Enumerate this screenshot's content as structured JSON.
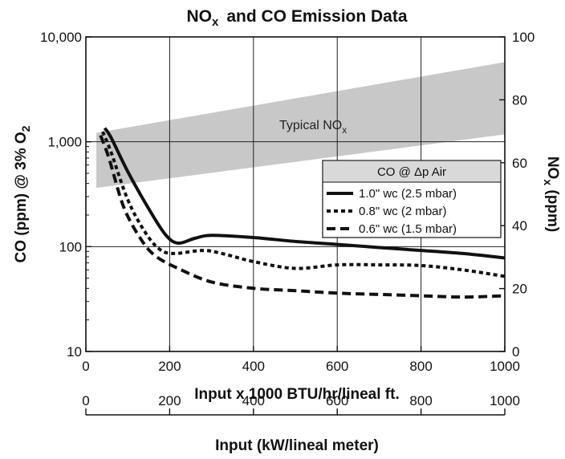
{
  "chart_data": {
    "type": "line",
    "title_main": "NO",
    "title_sub": "x",
    "title_rest": "and CO Emission Data",
    "xlabel": "Input x 1000 BTU/hr/lineal ft.",
    "xlim": [
      0,
      1000
    ],
    "x_ticks": [
      "0",
      "200",
      "400",
      "600",
      "800",
      "1000"
    ],
    "x2label": "Input (kW/lineal meter)",
    "x2lim": [
      0,
      1000
    ],
    "x2_ticks": [
      "0",
      "200",
      "400",
      "600",
      "800",
      "1000"
    ],
    "ylabel_left": {
      "a": "CO (ppm) @ 3% O",
      "b": "2"
    },
    "y_scale_left": "log",
    "ylim_left": [
      10,
      10000
    ],
    "y_ticks_left": [
      "10",
      "100",
      "1,000",
      "10,000"
    ],
    "ylabel_right": {
      "a": "NO",
      "b": "x",
      "c": " (ppm)"
    },
    "ylim_right": [
      0,
      100
    ],
    "y_ticks_right": [
      "0",
      "20",
      "40",
      "60",
      "80",
      "100"
    ],
    "grid": true,
    "band": {
      "label_main": "Typical NO",
      "label_sub": "x",
      "color": "#c8c8c8",
      "x": [
        25,
        1000
      ],
      "upper_right_axis": [
        69.5,
        92
      ],
      "lower_right_axis": [
        52,
        69
      ]
    },
    "legend": {
      "title": "CO @ Δp Air",
      "position": "center-right"
    },
    "series": [
      {
        "name": "1.0\" wc (2.5 mbar)",
        "style": "solid",
        "x": [
          45,
          60,
          100,
          150,
          190,
          220,
          260,
          300,
          400,
          500,
          600,
          700,
          800,
          900,
          1000
        ],
        "y": [
          1350,
          1100,
          520,
          230,
          130,
          108,
          120,
          128,
          122,
          112,
          105,
          98,
          92,
          86,
          78
        ]
      },
      {
        "name": "0.8\" wc (2 mbar)",
        "style": "dotted",
        "x": [
          40,
          60,
          100,
          140,
          175,
          210,
          280,
          330,
          400,
          500,
          600,
          700,
          800,
          900,
          1000
        ],
        "y": [
          1250,
          800,
          280,
          140,
          95,
          86,
          92,
          85,
          72,
          62,
          67,
          67,
          66,
          60,
          52
        ]
      },
      {
        "name": "0.6\" wc (1.5 mbar)",
        "style": "dashed",
        "x": [
          35,
          55,
          90,
          130,
          165,
          220,
          300,
          400,
          500,
          600,
          700,
          800,
          900,
          1000
        ],
        "y": [
          1150,
          700,
          240,
          120,
          82,
          62,
          46,
          40,
          38,
          36,
          35,
          34,
          33,
          34
        ]
      }
    ]
  }
}
